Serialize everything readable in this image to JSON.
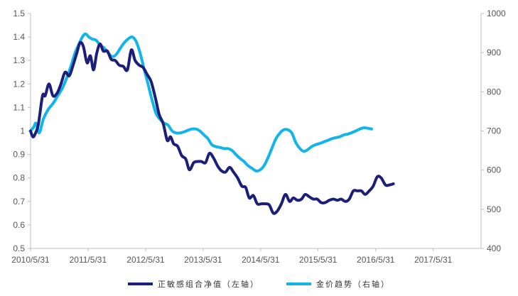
{
  "chart_data": {
    "type": "line",
    "title": "",
    "xlabel": "",
    "ylabel": "",
    "x_ticks": [
      "2010/5/31",
      "2011/5/31",
      "2012/5/31",
      "2013/5/31",
      "2014/5/31",
      "2015/5/31",
      "2016/5/31",
      "2017/5/31"
    ],
    "x_range": [
      "2010-05-31",
      "2018-03-31"
    ],
    "y_left": {
      "min": 0.5,
      "max": 1.5,
      "ticks": [
        "0.5",
        "0.6",
        "0.7",
        "0.8",
        "0.9",
        "1",
        "1.1",
        "1.2",
        "1.3",
        "1.4",
        "1.5"
      ]
    },
    "y_right": {
      "min": 400,
      "max": 1000,
      "ticks": [
        "400",
        "500",
        "600",
        "700",
        "800",
        "900",
        "1000"
      ]
    },
    "grid": false,
    "legend_position": "bottom",
    "series": [
      {
        "name": "正敏感组合净值（左轴）",
        "axis": "left",
        "color": "#1b1f7a",
        "points": [
          [
            "2010-05-31",
            1.0
          ],
          [
            "2010-06-15",
            0.975
          ],
          [
            "2010-07-01",
            0.99
          ],
          [
            "2010-07-20",
            1.03
          ],
          [
            "2010-08-15",
            1.15
          ],
          [
            "2010-09-01",
            1.15
          ],
          [
            "2010-09-25",
            1.2
          ],
          [
            "2010-10-20",
            1.15
          ],
          [
            "2010-11-15",
            1.16
          ],
          [
            "2010-12-10",
            1.2
          ],
          [
            "2011-01-05",
            1.25
          ],
          [
            "2011-02-01",
            1.235
          ],
          [
            "2011-02-25",
            1.28
          ],
          [
            "2011-03-20",
            1.33
          ],
          [
            "2011-04-10",
            1.375
          ],
          [
            "2011-05-01",
            1.36
          ],
          [
            "2011-05-25",
            1.29
          ],
          [
            "2011-06-15",
            1.32
          ],
          [
            "2011-07-05",
            1.26
          ],
          [
            "2011-07-25",
            1.33
          ],
          [
            "2011-08-15",
            1.37
          ],
          [
            "2011-09-05",
            1.34
          ],
          [
            "2011-10-01",
            1.34
          ],
          [
            "2011-10-25",
            1.305
          ],
          [
            "2011-11-20",
            1.3
          ],
          [
            "2011-12-15",
            1.28
          ],
          [
            "2012-01-10",
            1.275
          ],
          [
            "2012-02-05",
            1.26
          ],
          [
            "2012-03-01",
            1.345
          ],
          [
            "2012-03-25",
            1.3
          ],
          [
            "2012-04-20",
            1.28
          ],
          [
            "2012-05-15",
            1.27
          ],
          [
            "2012-06-10",
            1.24
          ],
          [
            "2012-07-05",
            1.21
          ],
          [
            "2012-08-01",
            1.14
          ],
          [
            "2012-08-25",
            1.07
          ],
          [
            "2012-09-20",
            1.03
          ],
          [
            "2012-10-15",
            0.96
          ],
          [
            "2012-11-05",
            0.975
          ],
          [
            "2012-11-25",
            0.945
          ],
          [
            "2012-12-20",
            0.935
          ],
          [
            "2013-01-15",
            0.895
          ],
          [
            "2013-02-10",
            0.88
          ],
          [
            "2013-03-05",
            0.835
          ],
          [
            "2013-04-01",
            0.865
          ],
          [
            "2013-04-25",
            0.87
          ],
          [
            "2013-05-20",
            0.87
          ],
          [
            "2013-06-15",
            0.865
          ],
          [
            "2013-07-10",
            0.905
          ],
          [
            "2013-08-05",
            0.885
          ],
          [
            "2013-09-01",
            0.85
          ],
          [
            "2013-09-25",
            0.83
          ],
          [
            "2013-10-20",
            0.825
          ],
          [
            "2013-11-15",
            0.845
          ],
          [
            "2013-12-10",
            0.825
          ],
          [
            "2014-01-05",
            0.8
          ],
          [
            "2014-02-01",
            0.765
          ],
          [
            "2014-02-25",
            0.76
          ],
          [
            "2014-03-20",
            0.715
          ],
          [
            "2014-04-15",
            0.725
          ],
          [
            "2014-05-10",
            0.69
          ],
          [
            "2014-06-05",
            0.69
          ],
          [
            "2014-07-01",
            0.69
          ],
          [
            "2014-07-25",
            0.685
          ],
          [
            "2014-08-20",
            0.65
          ],
          [
            "2014-09-15",
            0.66
          ],
          [
            "2014-10-10",
            0.69
          ],
          [
            "2014-11-05",
            0.73
          ],
          [
            "2014-12-01",
            0.7
          ],
          [
            "2014-12-25",
            0.715
          ],
          [
            "2015-01-20",
            0.705
          ],
          [
            "2015-02-15",
            0.71
          ],
          [
            "2015-03-10",
            0.73
          ],
          [
            "2015-04-05",
            0.72
          ],
          [
            "2015-05-01",
            0.71
          ],
          [
            "2015-05-25",
            0.71
          ],
          [
            "2015-06-20",
            0.695
          ],
          [
            "2015-07-15",
            0.695
          ],
          [
            "2015-08-10",
            0.705
          ],
          [
            "2015-09-05",
            0.71
          ],
          [
            "2015-10-01",
            0.705
          ],
          [
            "2015-10-25",
            0.71
          ],
          [
            "2015-11-20",
            0.7
          ],
          [
            "2015-12-15",
            0.71
          ],
          [
            "2016-01-10",
            0.745
          ],
          [
            "2016-02-05",
            0.745
          ],
          [
            "2016-03-01",
            0.745
          ],
          [
            "2016-03-25",
            0.73
          ],
          [
            "2016-04-20",
            0.745
          ],
          [
            "2016-05-15",
            0.765
          ],
          [
            "2016-06-10",
            0.805
          ],
          [
            "2016-07-05",
            0.8
          ],
          [
            "2016-08-01",
            0.77
          ],
          [
            "2016-08-25",
            0.77
          ],
          [
            "2016-09-20",
            0.775
          ]
        ]
      },
      {
        "name": "金价趋势（右轴）",
        "axis": "right",
        "color": "#12b5ea",
        "points": [
          [
            "2010-05-31",
            700
          ],
          [
            "2010-06-20",
            710
          ],
          [
            "2010-07-05",
            720
          ],
          [
            "2010-07-25",
            695
          ],
          [
            "2010-08-20",
            730
          ],
          [
            "2010-09-20",
            755
          ],
          [
            "2010-10-20",
            770
          ],
          [
            "2010-11-20",
            790
          ],
          [
            "2010-12-20",
            810
          ],
          [
            "2011-01-20",
            840
          ],
          [
            "2011-02-15",
            870
          ],
          [
            "2011-03-10",
            900
          ],
          [
            "2011-04-01",
            920
          ],
          [
            "2011-04-25",
            940
          ],
          [
            "2011-05-15",
            948
          ],
          [
            "2011-06-05",
            940
          ],
          [
            "2011-06-25",
            935
          ],
          [
            "2011-07-20",
            932
          ],
          [
            "2011-08-15",
            920
          ],
          [
            "2011-09-10",
            912
          ],
          [
            "2011-10-05",
            900
          ],
          [
            "2011-10-30",
            890
          ],
          [
            "2011-11-25",
            895
          ],
          [
            "2011-12-20",
            910
          ],
          [
            "2012-01-15",
            925
          ],
          [
            "2012-02-10",
            935
          ],
          [
            "2012-03-05",
            940
          ],
          [
            "2012-03-30",
            930
          ],
          [
            "2012-04-25",
            900
          ],
          [
            "2012-05-20",
            860
          ],
          [
            "2012-06-15",
            820
          ],
          [
            "2012-07-10",
            780
          ],
          [
            "2012-08-05",
            745
          ],
          [
            "2012-08-30",
            730
          ],
          [
            "2012-09-25",
            720
          ],
          [
            "2012-10-20",
            715
          ],
          [
            "2012-11-15",
            700
          ],
          [
            "2012-12-10",
            695
          ],
          [
            "2013-01-05",
            695
          ],
          [
            "2013-02-01",
            698
          ],
          [
            "2013-02-25",
            702
          ],
          [
            "2013-03-20",
            705
          ],
          [
            "2013-04-15",
            705
          ],
          [
            "2013-05-10",
            700
          ],
          [
            "2013-06-05",
            690
          ],
          [
            "2013-07-01",
            680
          ],
          [
            "2013-07-25",
            665
          ],
          [
            "2013-08-20",
            660
          ],
          [
            "2013-09-15",
            658
          ],
          [
            "2013-10-10",
            655
          ],
          [
            "2013-11-05",
            655
          ],
          [
            "2013-12-01",
            650
          ],
          [
            "2013-12-25",
            640
          ],
          [
            "2014-01-20",
            630
          ],
          [
            "2014-02-15",
            622
          ],
          [
            "2014-03-10",
            612
          ],
          [
            "2014-04-05",
            605
          ],
          [
            "2014-05-01",
            598
          ],
          [
            "2014-05-25",
            600
          ],
          [
            "2014-06-20",
            610
          ],
          [
            "2014-07-15",
            630
          ],
          [
            "2014-08-10",
            655
          ],
          [
            "2014-09-05",
            680
          ],
          [
            "2014-10-01",
            695
          ],
          [
            "2014-10-25",
            703
          ],
          [
            "2014-11-20",
            703
          ],
          [
            "2014-12-15",
            695
          ],
          [
            "2015-01-10",
            670
          ],
          [
            "2015-02-05",
            655
          ],
          [
            "2015-03-01",
            648
          ],
          [
            "2015-03-25",
            652
          ],
          [
            "2015-04-20",
            660
          ],
          [
            "2015-05-15",
            665
          ],
          [
            "2015-06-10",
            668
          ],
          [
            "2015-07-05",
            672
          ],
          [
            "2015-08-01",
            676
          ],
          [
            "2015-08-25",
            680
          ],
          [
            "2015-09-20",
            683
          ],
          [
            "2015-10-15",
            685
          ],
          [
            "2015-11-10",
            690
          ],
          [
            "2015-12-05",
            692
          ],
          [
            "2016-01-01",
            696
          ],
          [
            "2016-01-25",
            700
          ],
          [
            "2016-02-20",
            705
          ],
          [
            "2016-03-15",
            708
          ],
          [
            "2016-04-10",
            707
          ],
          [
            "2016-05-05",
            705
          ]
        ]
      }
    ]
  },
  "legend": {
    "items": [
      {
        "label": "正敏感组合净值（左轴）",
        "color": "#1b1f7a"
      },
      {
        "label": "金价趋势（右轴）",
        "color": "#12b5ea"
      }
    ]
  }
}
